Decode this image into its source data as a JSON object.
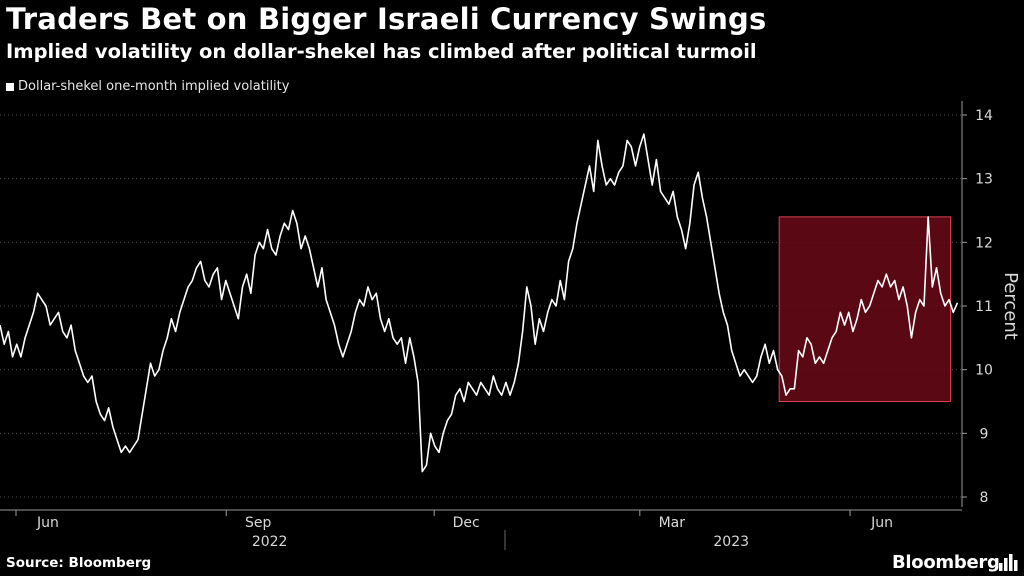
{
  "header": {
    "title": "Traders Bet on Bigger Israeli Currency Swings",
    "subtitle": "Implied volatility on dollar-shekel has climbed after political turmoil"
  },
  "footer": {
    "source": "Source: Bloomberg",
    "brand": "Bloomberg"
  },
  "colors": {
    "background": "#000000",
    "line": "#ffffff",
    "highlight_fill": "#6a0a18",
    "highlight_stroke": "#d8404f",
    "grid": "#4a4a4a"
  },
  "chart_data": {
    "type": "line",
    "title": "Traders Bet on Bigger Israeli Currency Swings",
    "subtitle": "Implied volatility on dollar-shekel has climbed after political turmoil",
    "ylabel": "Percent",
    "xlabel": "",
    "ylim": [
      8,
      14
    ],
    "yticks": [
      8,
      9,
      10,
      11,
      12,
      13,
      14
    ],
    "grid": "horizontal dotted",
    "legend": "top-left",
    "x_range": [
      "2022-05-25",
      "2023-07-20"
    ],
    "month_ticks": [
      {
        "label": "Jun",
        "date": "2022-06-01"
      },
      {
        "label": "Sep",
        "date": "2022-09-01"
      },
      {
        "label": "Dec",
        "date": "2022-12-01"
      },
      {
        "label": "Mar",
        "date": "2023-03-01"
      },
      {
        "label": "Jun",
        "date": "2023-06-01"
      }
    ],
    "year_labels": [
      {
        "label": "2022",
        "center": "2022-09-20"
      },
      {
        "label": "2023",
        "center": "2023-04-10"
      }
    ],
    "year_separator": "2023-01-01",
    "highlight": {
      "x_start": "2023-05-01",
      "x_end": "2023-07-15",
      "y_start": 9.5,
      "y_end": 12.4
    },
    "series": [
      {
        "name": "Dollar-shekel one-month implied volatility",
        "x_start": "2022-05-25",
        "x_end": "2023-07-18",
        "values": [
          10.7,
          10.4,
          10.6,
          10.2,
          10.4,
          10.2,
          10.5,
          10.7,
          10.9,
          11.2,
          11.1,
          11.0,
          10.7,
          10.8,
          10.9,
          10.6,
          10.5,
          10.7,
          10.3,
          10.1,
          9.9,
          9.8,
          9.9,
          9.5,
          9.3,
          9.2,
          9.4,
          9.1,
          8.9,
          8.7,
          8.8,
          8.7,
          8.8,
          8.9,
          9.3,
          9.7,
          10.1,
          9.9,
          10.0,
          10.3,
          10.5,
          10.8,
          10.6,
          10.9,
          11.1,
          11.3,
          11.4,
          11.6,
          11.7,
          11.4,
          11.3,
          11.5,
          11.6,
          11.1,
          11.4,
          11.2,
          11.0,
          10.8,
          11.3,
          11.5,
          11.2,
          11.8,
          12.0,
          11.9,
          12.2,
          11.9,
          11.8,
          12.1,
          12.3,
          12.2,
          12.5,
          12.3,
          11.9,
          12.1,
          11.9,
          11.6,
          11.3,
          11.6,
          11.1,
          10.9,
          10.7,
          10.4,
          10.2,
          10.4,
          10.6,
          10.9,
          11.1,
          11.0,
          11.3,
          11.1,
          11.2,
          10.8,
          10.6,
          10.8,
          10.5,
          10.4,
          10.5,
          10.1,
          10.5,
          10.2,
          9.8,
          8.4,
          8.5,
          9.0,
          8.8,
          8.7,
          9.0,
          9.2,
          9.3,
          9.6,
          9.7,
          9.5,
          9.8,
          9.7,
          9.6,
          9.8,
          9.7,
          9.6,
          9.9,
          9.7,
          9.6,
          9.8,
          9.6,
          9.8,
          10.1,
          10.6,
          11.3,
          11.0,
          10.4,
          10.8,
          10.6,
          10.9,
          11.1,
          11.0,
          11.4,
          11.1,
          11.7,
          11.9,
          12.3,
          12.6,
          12.9,
          13.2,
          12.8,
          13.6,
          13.2,
          12.9,
          13.0,
          12.9,
          13.1,
          13.2,
          13.6,
          13.5,
          13.2,
          13.5,
          13.7,
          13.3,
          12.9,
          13.3,
          12.8,
          12.7,
          12.6,
          12.8,
          12.4,
          12.2,
          11.9,
          12.3,
          12.9,
          13.1,
          12.7,
          12.4,
          12.0,
          11.6,
          11.2,
          10.9,
          10.7,
          10.3,
          10.1,
          9.9,
          10.0,
          9.9,
          9.8,
          9.9,
          10.2,
          10.4,
          10.1,
          10.3,
          10.0,
          9.9,
          9.6,
          9.7,
          9.7,
          10.3,
          10.2,
          10.5,
          10.4,
          10.1,
          10.2,
          10.1,
          10.3,
          10.5,
          10.6,
          10.9,
          10.7,
          10.9,
          10.6,
          10.8,
          11.1,
          10.9,
          11.0,
          11.2,
          11.4,
          11.3,
          11.5,
          11.3,
          11.4,
          11.1,
          11.3,
          11.0,
          10.5,
          10.9,
          11.1,
          11.0,
          12.4,
          11.3,
          11.6,
          11.2,
          11.0,
          11.1,
          10.9,
          11.05
        ]
      }
    ]
  }
}
